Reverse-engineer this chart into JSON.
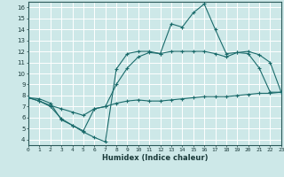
{
  "xlabel": "Humidex (Indice chaleur)",
  "bg_color": "#cde8e8",
  "grid_color": "#ffffff",
  "line_color": "#1a6b6b",
  "xlim": [
    0,
    23
  ],
  "ylim": [
    3.5,
    16.5
  ],
  "xticks": [
    0,
    1,
    2,
    3,
    4,
    5,
    6,
    7,
    8,
    9,
    10,
    11,
    12,
    13,
    14,
    15,
    16,
    17,
    18,
    19,
    20,
    21,
    22,
    23
  ],
  "yticks": [
    4,
    5,
    6,
    7,
    8,
    9,
    10,
    11,
    12,
    13,
    14,
    15,
    16
  ],
  "curve_top": {
    "x": [
      0,
      1,
      2,
      3,
      4,
      5,
      6,
      7,
      8,
      9,
      10,
      11,
      12,
      13,
      14,
      15,
      16,
      17,
      18,
      19,
      20,
      21,
      22,
      23
    ],
    "y": [
      7.8,
      7.7,
      7.3,
      5.8,
      5.3,
      4.7,
      4.2,
      3.8,
      10.4,
      11.8,
      12.0,
      12.0,
      11.8,
      14.5,
      14.2,
      15.5,
      16.3,
      14.0,
      11.8,
      11.9,
      11.8,
      10.5,
      8.3,
      8.3
    ]
  },
  "curve_mid": {
    "x": [
      0,
      1,
      2,
      3,
      4,
      5,
      6,
      7,
      8,
      9,
      10,
      11,
      12,
      13,
      14,
      15,
      16,
      17,
      18,
      19,
      20,
      21,
      22,
      23
    ],
    "y": [
      7.8,
      7.5,
      7.1,
      6.8,
      6.5,
      6.2,
      6.8,
      7.0,
      9.0,
      10.5,
      11.5,
      11.9,
      11.8,
      12.0,
      12.0,
      12.0,
      12.0,
      11.8,
      11.5,
      11.9,
      12.0,
      11.7,
      11.0,
      8.3
    ]
  },
  "curve_bot": {
    "x": [
      0,
      1,
      2,
      3,
      4,
      5,
      6,
      7,
      8,
      9,
      10,
      11,
      12,
      13,
      14,
      15,
      16,
      17,
      18,
      19,
      20,
      21,
      22,
      23
    ],
    "y": [
      7.8,
      7.5,
      7.0,
      5.9,
      5.3,
      4.8,
      6.8,
      7.0,
      7.3,
      7.5,
      7.6,
      7.5,
      7.5,
      7.6,
      7.7,
      7.8,
      7.9,
      7.9,
      7.9,
      8.0,
      8.1,
      8.2,
      8.2,
      8.3
    ]
  }
}
